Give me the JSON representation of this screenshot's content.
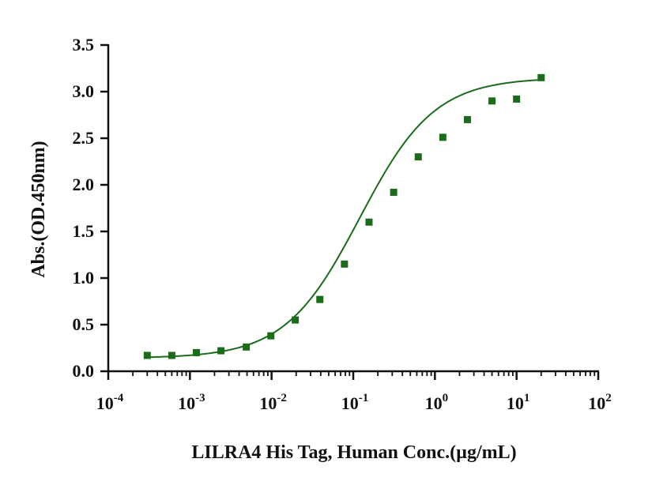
{
  "chart_data": {
    "type": "scatter",
    "title": "",
    "xlabel": "LILRA4 His Tag, Human Conc.(µg/mL)",
    "ylabel": "Abs.(OD.450nm)",
    "x_scale": "log",
    "xlim": [
      0.0001,
      100
    ],
    "ylim": [
      0,
      3.5
    ],
    "grid": false,
    "colors": {
      "series": "#1a6b1a",
      "axis": "#111111"
    },
    "x_ticks": [
      {
        "value": 0.0001,
        "base": "10",
        "exp": "-4"
      },
      {
        "value": 0.001,
        "base": "10",
        "exp": "-3"
      },
      {
        "value": 0.01,
        "base": "10",
        "exp": "-2"
      },
      {
        "value": 0.1,
        "base": "10",
        "exp": "-1"
      },
      {
        "value": 1,
        "base": "10",
        "exp": "0"
      },
      {
        "value": 10,
        "base": "10",
        "exp": "1"
      },
      {
        "value": 100,
        "base": "10",
        "exp": "2"
      }
    ],
    "y_ticks": [
      {
        "value": 0,
        "label": "0.0"
      },
      {
        "value": 0.5,
        "label": "0.5"
      },
      {
        "value": 1,
        "label": "1.0"
      },
      {
        "value": 1.5,
        "label": "1.5"
      },
      {
        "value": 2,
        "label": "2.0"
      },
      {
        "value": 2.5,
        "label": "2.5"
      },
      {
        "value": 3,
        "label": "3.0"
      },
      {
        "value": 3.5,
        "label": "3.5"
      }
    ],
    "series": [
      {
        "x": [
          0.0003,
          0.0006,
          0.0012,
          0.0024,
          0.0049,
          0.0098,
          0.0195,
          0.039,
          0.078,
          0.156,
          0.3125,
          0.625,
          1.25,
          2.5,
          5,
          10,
          20
        ],
        "y": [
          0.17,
          0.17,
          0.2,
          0.22,
          0.26,
          0.38,
          0.55,
          0.77,
          1.15,
          1.6,
          1.92,
          2.3,
          2.51,
          2.7,
          2.9,
          2.92,
          3.15
        ]
      }
    ],
    "fit": {
      "model": "4PL",
      "bottom": 0.14,
      "top": 3.15,
      "ec50": 0.12,
      "hill": 0.95,
      "x_range": [
        0.0003,
        20
      ]
    }
  }
}
